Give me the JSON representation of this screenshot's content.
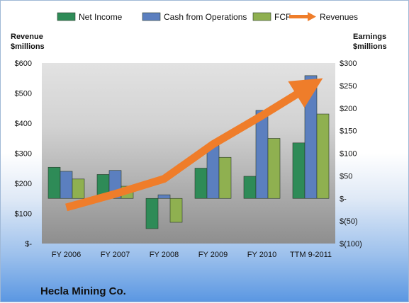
{
  "company": "Hecla Mining Co.",
  "chart_data": {
    "type": "bar",
    "categories": [
      "FY 2006",
      "FY 2007",
      "FY 2008",
      "FY 2009",
      "FY 2010",
      "TTM 9-2011"
    ],
    "series": [
      {
        "name": "Net Income",
        "axis": "right",
        "color": "#2e8b57",
        "values": [
          69,
          53,
          -67,
          67,
          49,
          123
        ]
      },
      {
        "name": "Cash from Operations",
        "axis": "right",
        "color": "#5b7fbf",
        "values": [
          60,
          62,
          8,
          117,
          195,
          272
        ]
      },
      {
        "name": "FCF",
        "axis": "right",
        "color": "#8fb050",
        "values": [
          43,
          27,
          -53,
          91,
          133,
          187
        ]
      }
    ],
    "line_series": {
      "name": "Revenues",
      "axis": "left",
      "color": "#ef7d2a",
      "values": [
        120,
        165,
        215,
        330,
        425,
        525
      ]
    },
    "left_axis": {
      "title": [
        "Revenue",
        "$millions"
      ],
      "ylim": [
        0,
        600
      ],
      "ticks": [
        0,
        100,
        200,
        300,
        400,
        500,
        600
      ],
      "tick_labels": [
        "$-",
        "$100",
        "$200",
        "$300",
        "$400",
        "$500",
        "$600"
      ]
    },
    "right_axis": {
      "title": [
        "Earnings",
        "$millions"
      ],
      "ylim": [
        -100,
        300
      ],
      "ticks": [
        -100,
        -50,
        0,
        50,
        100,
        150,
        200,
        250,
        300
      ],
      "tick_labels": [
        "$(100)",
        "$(50)",
        "$-",
        "$50",
        "$100",
        "$150",
        "$200",
        "$250",
        "$300"
      ]
    },
    "legend_position": "top",
    "grid": false
  }
}
